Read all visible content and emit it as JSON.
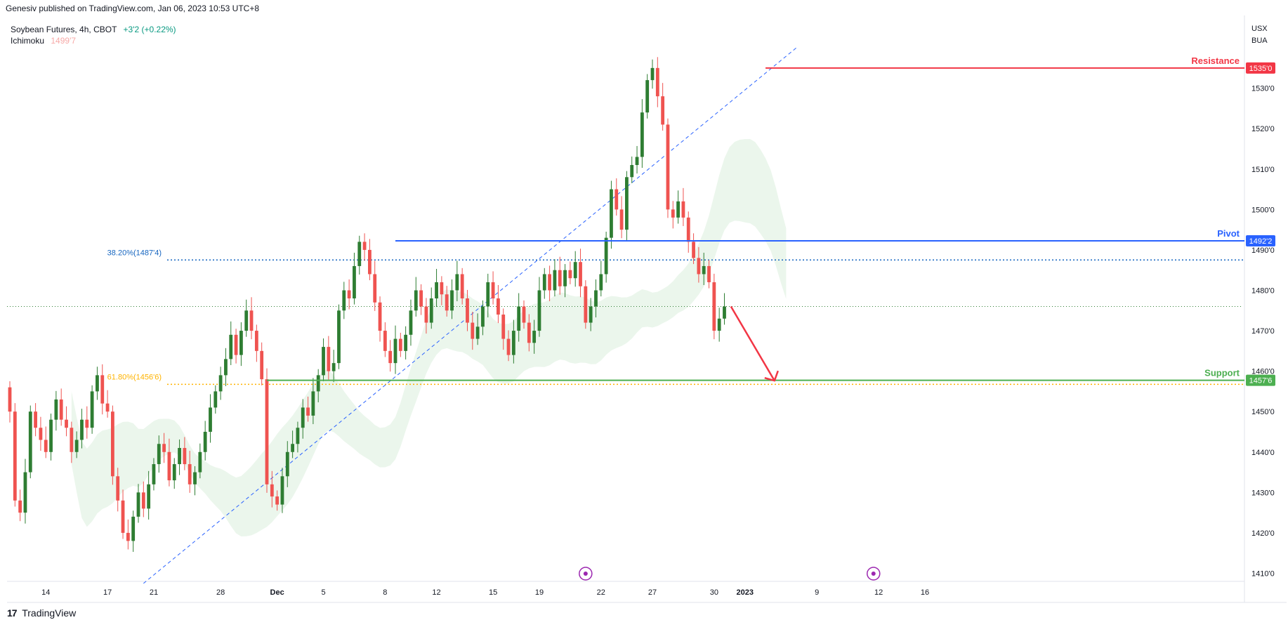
{
  "publisher": "Genesiv published on TradingView.com, Jan 06, 2023 10:53 UTC+8",
  "legend": {
    "symbol": "Soybean Futures, 4h, CBOT",
    "change": "+3'2 (+0.22%)",
    "indicator_name": "Ichimoku",
    "indicator_value": "1499'7"
  },
  "currency": [
    "USX",
    "BUA"
  ],
  "footer": {
    "logo_mark": "17",
    "logo_text": "TradingView"
  },
  "colors": {
    "up": "#2e7d32",
    "down": "#ef5350",
    "resistance": "#f23645",
    "pivot": "#2962ff",
    "support": "#4caf50",
    "fib382": "#1565c0",
    "fib618": "#ffb300",
    "cloud_green": "#e8f5e9",
    "cloud_red": "#fde3e3"
  },
  "chart_data": {
    "type": "candlestick",
    "y_axis": {
      "min": 1408,
      "max": 1548,
      "ticks": [
        {
          "value": 1410,
          "label": "1410'0"
        },
        {
          "value": 1420,
          "label": "1420'0"
        },
        {
          "value": 1430,
          "label": "1430'0"
        },
        {
          "value": 1440,
          "label": "1440'0"
        },
        {
          "value": 1450,
          "label": "1450'0"
        },
        {
          "value": 1460,
          "label": "1460'0"
        },
        {
          "value": 1470,
          "label": "1470'0"
        },
        {
          "value": 1480,
          "label": "1480'0"
        },
        {
          "value": 1490,
          "label": "1490'0"
        },
        {
          "value": 1500,
          "label": "1500'0"
        },
        {
          "value": 1510,
          "label": "1510'0"
        },
        {
          "value": 1520,
          "label": "1520'0"
        },
        {
          "value": 1530,
          "label": "1530'0"
        }
      ]
    },
    "x_axis": {
      "ticks": [
        {
          "bar": 7,
          "label": "14"
        },
        {
          "bar": 19,
          "label": "17"
        },
        {
          "bar": 28,
          "label": "21"
        },
        {
          "bar": 41,
          "label": "28"
        },
        {
          "bar": 52,
          "label": "Dec"
        },
        {
          "bar": 61,
          "label": "5"
        },
        {
          "bar": 73,
          "label": "8"
        },
        {
          "bar": 83,
          "label": "12"
        },
        {
          "bar": 94,
          "label": "15"
        },
        {
          "bar": 103,
          "label": "19"
        },
        {
          "bar": 115,
          "label": "22"
        },
        {
          "bar": 125,
          "label": "27"
        },
        {
          "bar": 137,
          "label": "30"
        },
        {
          "bar": 143,
          "label": "2023"
        },
        {
          "bar": 157,
          "label": "9"
        },
        {
          "bar": 169,
          "label": "12"
        },
        {
          "bar": 178,
          "label": "16"
        }
      ]
    },
    "candles": [
      [
        1456,
        1450
      ],
      [
        1450,
        1428
      ],
      [
        1428,
        1425
      ],
      [
        1425,
        1435
      ],
      [
        1435,
        1450
      ],
      [
        1450,
        1446
      ],
      [
        1446,
        1443
      ],
      [
        1443,
        1440
      ],
      [
        1440,
        1448
      ],
      [
        1448,
        1453
      ],
      [
        1453,
        1448
      ],
      [
        1448,
        1446
      ],
      [
        1446,
        1440
      ],
      [
        1440,
        1443
      ],
      [
        1443,
        1448
      ],
      [
        1448,
        1446
      ],
      [
        1446,
        1455
      ],
      [
        1455,
        1459
      ],
      [
        1459,
        1452
      ],
      [
        1452,
        1450
      ],
      [
        1450,
        1434
      ],
      [
        1434,
        1428
      ],
      [
        1428,
        1420
      ],
      [
        1420,
        1418
      ],
      [
        1418,
        1424
      ],
      [
        1424,
        1430
      ],
      [
        1430,
        1426
      ],
      [
        1426,
        1432
      ],
      [
        1432,
        1437
      ],
      [
        1437,
        1442
      ],
      [
        1442,
        1440
      ],
      [
        1440,
        1433
      ],
      [
        1433,
        1437
      ],
      [
        1437,
        1441
      ],
      [
        1441,
        1437
      ],
      [
        1437,
        1432
      ],
      [
        1432,
        1435
      ],
      [
        1435,
        1440
      ],
      [
        1440,
        1445
      ],
      [
        1445,
        1451
      ],
      [
        1451,
        1455
      ],
      [
        1455,
        1459
      ],
      [
        1459,
        1463
      ],
      [
        1463,
        1469
      ],
      [
        1469,
        1464
      ],
      [
        1464,
        1470
      ],
      [
        1470,
        1475
      ],
      [
        1475,
        1470
      ],
      [
        1470,
        1465
      ],
      [
        1465,
        1458
      ],
      [
        1458,
        1432
      ],
      [
        1432,
        1429
      ],
      [
        1429,
        1427
      ],
      [
        1427,
        1434
      ],
      [
        1434,
        1440
      ],
      [
        1440,
        1442
      ],
      [
        1442,
        1446
      ],
      [
        1446,
        1451
      ],
      [
        1451,
        1449
      ],
      [
        1449,
        1455
      ],
      [
        1455,
        1459
      ],
      [
        1459,
        1466
      ],
      [
        1466,
        1460
      ],
      [
        1460,
        1462
      ],
      [
        1462,
        1475
      ],
      [
        1475,
        1480
      ],
      [
        1480,
        1478
      ],
      [
        1478,
        1486
      ],
      [
        1486,
        1492
      ],
      [
        1492,
        1490
      ],
      [
        1490,
        1484
      ],
      [
        1484,
        1477
      ],
      [
        1477,
        1470
      ],
      [
        1470,
        1465
      ],
      [
        1465,
        1462
      ],
      [
        1462,
        1468
      ],
      [
        1468,
        1465
      ],
      [
        1465,
        1469
      ],
      [
        1469,
        1475
      ],
      [
        1475,
        1480
      ],
      [
        1480,
        1476
      ],
      [
        1476,
        1472
      ],
      [
        1472,
        1478
      ],
      [
        1478,
        1482
      ],
      [
        1482,
        1479
      ],
      [
        1479,
        1475
      ],
      [
        1475,
        1480
      ],
      [
        1480,
        1484
      ],
      [
        1484,
        1478
      ],
      [
        1478,
        1472
      ],
      [
        1472,
        1468
      ],
      [
        1468,
        1471
      ],
      [
        1471,
        1476
      ],
      [
        1476,
        1482
      ],
      [
        1482,
        1478
      ],
      [
        1478,
        1474
      ],
      [
        1474,
        1468
      ],
      [
        1468,
        1464
      ],
      [
        1464,
        1470
      ],
      [
        1470,
        1476
      ],
      [
        1476,
        1472
      ],
      [
        1472,
        1467
      ],
      [
        1467,
        1470
      ],
      [
        1470,
        1480
      ],
      [
        1480,
        1484
      ],
      [
        1484,
        1480
      ],
      [
        1480,
        1485
      ],
      [
        1485,
        1481
      ],
      [
        1481,
        1485
      ],
      [
        1485,
        1483
      ],
      [
        1483,
        1487
      ],
      [
        1487,
        1481
      ],
      [
        1481,
        1472
      ],
      [
        1472,
        1476
      ],
      [
        1476,
        1480
      ],
      [
        1480,
        1484
      ],
      [
        1484,
        1493
      ],
      [
        1493,
        1505
      ],
      [
        1505,
        1500
      ],
      [
        1500,
        1495
      ],
      [
        1495,
        1508
      ],
      [
        1508,
        1511
      ],
      [
        1511,
        1513
      ],
      [
        1513,
        1524
      ],
      [
        1524,
        1532
      ],
      [
        1532,
        1535
      ],
      [
        1535,
        1528
      ],
      [
        1528,
        1521
      ],
      [
        1521,
        1500
      ],
      [
        1500,
        1498
      ],
      [
        1498,
        1502
      ],
      [
        1502,
        1498
      ],
      [
        1498,
        1492
      ],
      [
        1492,
        1488
      ],
      [
        1488,
        1484
      ],
      [
        1484,
        1486
      ],
      [
        1486,
        1482
      ],
      [
        1482,
        1470
      ],
      [
        1470,
        1473
      ],
      [
        1473,
        1476
      ]
    ],
    "levels": [
      {
        "name": "Resistance",
        "value": 1535,
        "label": "1535'0"
      },
      {
        "name": "Pivot",
        "value": 1492.25,
        "label": "1492'2"
      },
      {
        "name": "Support",
        "value": 1457.75,
        "label": "1457'6"
      }
    ],
    "fibonacci": [
      {
        "label": "38.20%(1487'4)",
        "value": 1487.5
      },
      {
        "label": "61.80%(1456'6)",
        "value": 1456.75
      }
    ],
    "projection": {
      "from_value": 1476,
      "to_value": 1458
    }
  }
}
